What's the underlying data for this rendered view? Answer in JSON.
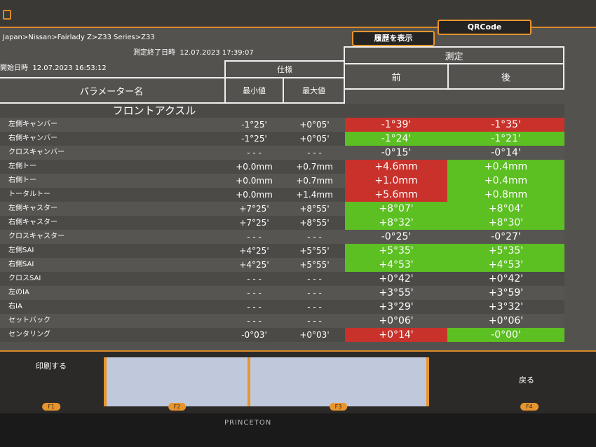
{
  "header": {
    "breadcrumb": "Japan>Nissan>Fairlady Z>Z33 Series>Z33",
    "start_label": "開始日時",
    "start_value": "12.07.2023 16:53:12",
    "end_label": "測定終了日時",
    "end_value": "12.07.2023 17:39:07",
    "history_button": "履歴を表示",
    "qr_button": "QRCode"
  },
  "table": {
    "param_header": "パラメーター名",
    "spec_header": "仕様",
    "min_header": "最小値",
    "max_header": "最大値",
    "measure_header": "測定",
    "before_header": "前",
    "after_header": "後",
    "section": "フロントアクスル",
    "rows": [
      {
        "label": "左側キャンバー",
        "min": "-1°25'",
        "max": "+0°05'",
        "before": "-1°39'",
        "after": "-1°35'",
        "before_status": "red",
        "after_status": "red"
      },
      {
        "label": "右側キャンバー",
        "min": "-1°25'",
        "max": "+0°05'",
        "before": "-1°24'",
        "after": "-1°21'",
        "before_status": "green",
        "after_status": "green"
      },
      {
        "label": "クロスキャンバー",
        "min": "- - -",
        "max": "- - -",
        "before": "-0°15'",
        "after": "-0°14'",
        "before_status": "",
        "after_status": ""
      },
      {
        "label": "左側トー",
        "min": "+0.0mm",
        "max": "+0.7mm",
        "before": "+4.6mm",
        "after": "+0.4mm",
        "before_status": "red",
        "after_status": "green"
      },
      {
        "label": "右側トー",
        "min": "+0.0mm",
        "max": "+0.7mm",
        "before": "+1.0mm",
        "after": "+0.4mm",
        "before_status": "red",
        "after_status": "green"
      },
      {
        "label": "トータルトー",
        "min": "+0.0mm",
        "max": "+1.4mm",
        "before": "+5.6mm",
        "after": "+0.8mm",
        "before_status": "red",
        "after_status": "green"
      },
      {
        "label": "左側キャスター",
        "min": "+7°25'",
        "max": "+8°55'",
        "before": "+8°07'",
        "after": "+8°04'",
        "before_status": "green",
        "after_status": "green"
      },
      {
        "label": "右側キャスター",
        "min": "+7°25'",
        "max": "+8°55'",
        "before": "+8°32'",
        "after": "+8°30'",
        "before_status": "green",
        "after_status": "green"
      },
      {
        "label": "クロスキャスター",
        "min": "- - -",
        "max": "- - -",
        "before": "-0°25'",
        "after": "-0°27'",
        "before_status": "",
        "after_status": ""
      },
      {
        "label": "左側SAI",
        "min": "+4°25'",
        "max": "+5°55'",
        "before": "+5°35'",
        "after": "+5°35'",
        "before_status": "green",
        "after_status": "green"
      },
      {
        "label": "右側SAI",
        "min": "+4°25'",
        "max": "+5°55'",
        "before": "+4°53'",
        "after": "+4°53'",
        "before_status": "green",
        "after_status": "green"
      },
      {
        "label": "クロスSAI",
        "min": "- - -",
        "max": "- - -",
        "before": "+0°42'",
        "after": "+0°42'",
        "before_status": "",
        "after_status": ""
      },
      {
        "label": "左のIA",
        "min": "- - -",
        "max": "- - -",
        "before": "+3°55'",
        "after": "+3°59'",
        "before_status": "",
        "after_status": ""
      },
      {
        "label": "右IA",
        "min": "- - -",
        "max": "- - -",
        "before": "+3°29'",
        "after": "+3°32'",
        "before_status": "",
        "after_status": ""
      },
      {
        "label": "セットバック",
        "min": "- - -",
        "max": "- - -",
        "before": "+0°06'",
        "after": "+0°06'",
        "before_status": "",
        "after_status": ""
      },
      {
        "label": "センタリング",
        "min": "-0°03'",
        "max": "+0°03'",
        "before": "+0°14'",
        "after": "-0°00'",
        "before_status": "red",
        "after_status": "green"
      }
    ]
  },
  "footer": {
    "f1": "印刷する",
    "f1_key": "F1",
    "f2_key": "F2",
    "f3_key": "F3",
    "f4": "戻る",
    "f4_key": "F4"
  },
  "monitor_brand": "PRINCETON",
  "colors": {
    "red": "#c8322b",
    "green": "#5cbf22",
    "accent": "#e8952e"
  }
}
